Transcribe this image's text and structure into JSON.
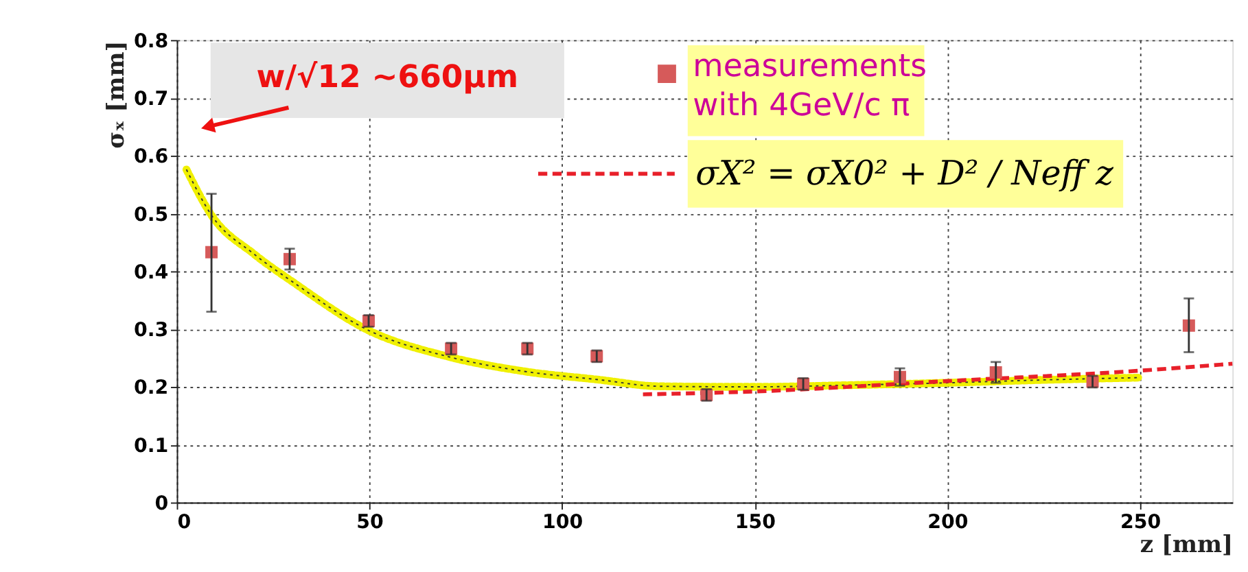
{
  "chart_data": {
    "type": "scatter",
    "xlabel": "z [mm]",
    "ylabel": "σₓ [mm]",
    "xlim": [
      0,
      274
    ],
    "ylim": [
      0,
      0.8
    ],
    "xticks": [
      0,
      50,
      100,
      150,
      200,
      250
    ],
    "yticks": [
      0,
      0.1,
      0.2,
      0.3,
      0.4,
      0.5,
      0.6,
      0.7,
      0.8
    ],
    "grid": true,
    "legend": "top",
    "annotations": [
      {
        "text": "w/√12 ~660μm",
        "x": 8,
        "y": 0.65
      }
    ],
    "series": [
      {
        "name": "measurements with 4GeV/c π",
        "type": "scatter",
        "marker": "square",
        "color": "#d65a5a",
        "x": [
          9,
          29.3,
          49.8,
          71.2,
          91,
          109,
          137.5,
          162.6,
          187.7,
          212.6,
          237.7,
          262.7
        ],
        "values": [
          0.433,
          0.421,
          0.314,
          0.266,
          0.266,
          0.253,
          0.186,
          0.205,
          0.217,
          0.225,
          0.209,
          0.306
        ],
        "errors": [
          [
            0.33,
            0.534
          ],
          [
            0.403,
            0.439
          ],
          0.01,
          0.01,
          0.01,
          0.01,
          0.01,
          0.01,
          0.015,
          0.018,
          0.01,
          [
            0.26,
            0.353
          ]
        ]
      },
      {
        "type": "line",
        "line_style": "dotted",
        "color": "#f0f000",
        "x": [
          2.5,
          9,
          20,
          30,
          50,
          70,
          90,
          110,
          125,
          150,
          175,
          200,
          225,
          250
        ],
        "values": [
          0.576,
          0.497,
          0.43,
          0.382,
          0.297,
          0.253,
          0.227,
          0.212,
          0.201,
          0.2,
          0.203,
          0.207,
          0.212,
          0.216
        ]
      },
      {
        "name": "σX² = σX0² + D² / Neff z",
        "type": "line",
        "line_style": "dashed",
        "color": "#e8202a",
        "x": [
          121,
          150,
          200,
          250,
          274
        ],
        "values": [
          0.187,
          0.192,
          0.21,
          0.228,
          0.24
        ]
      }
    ]
  }
}
